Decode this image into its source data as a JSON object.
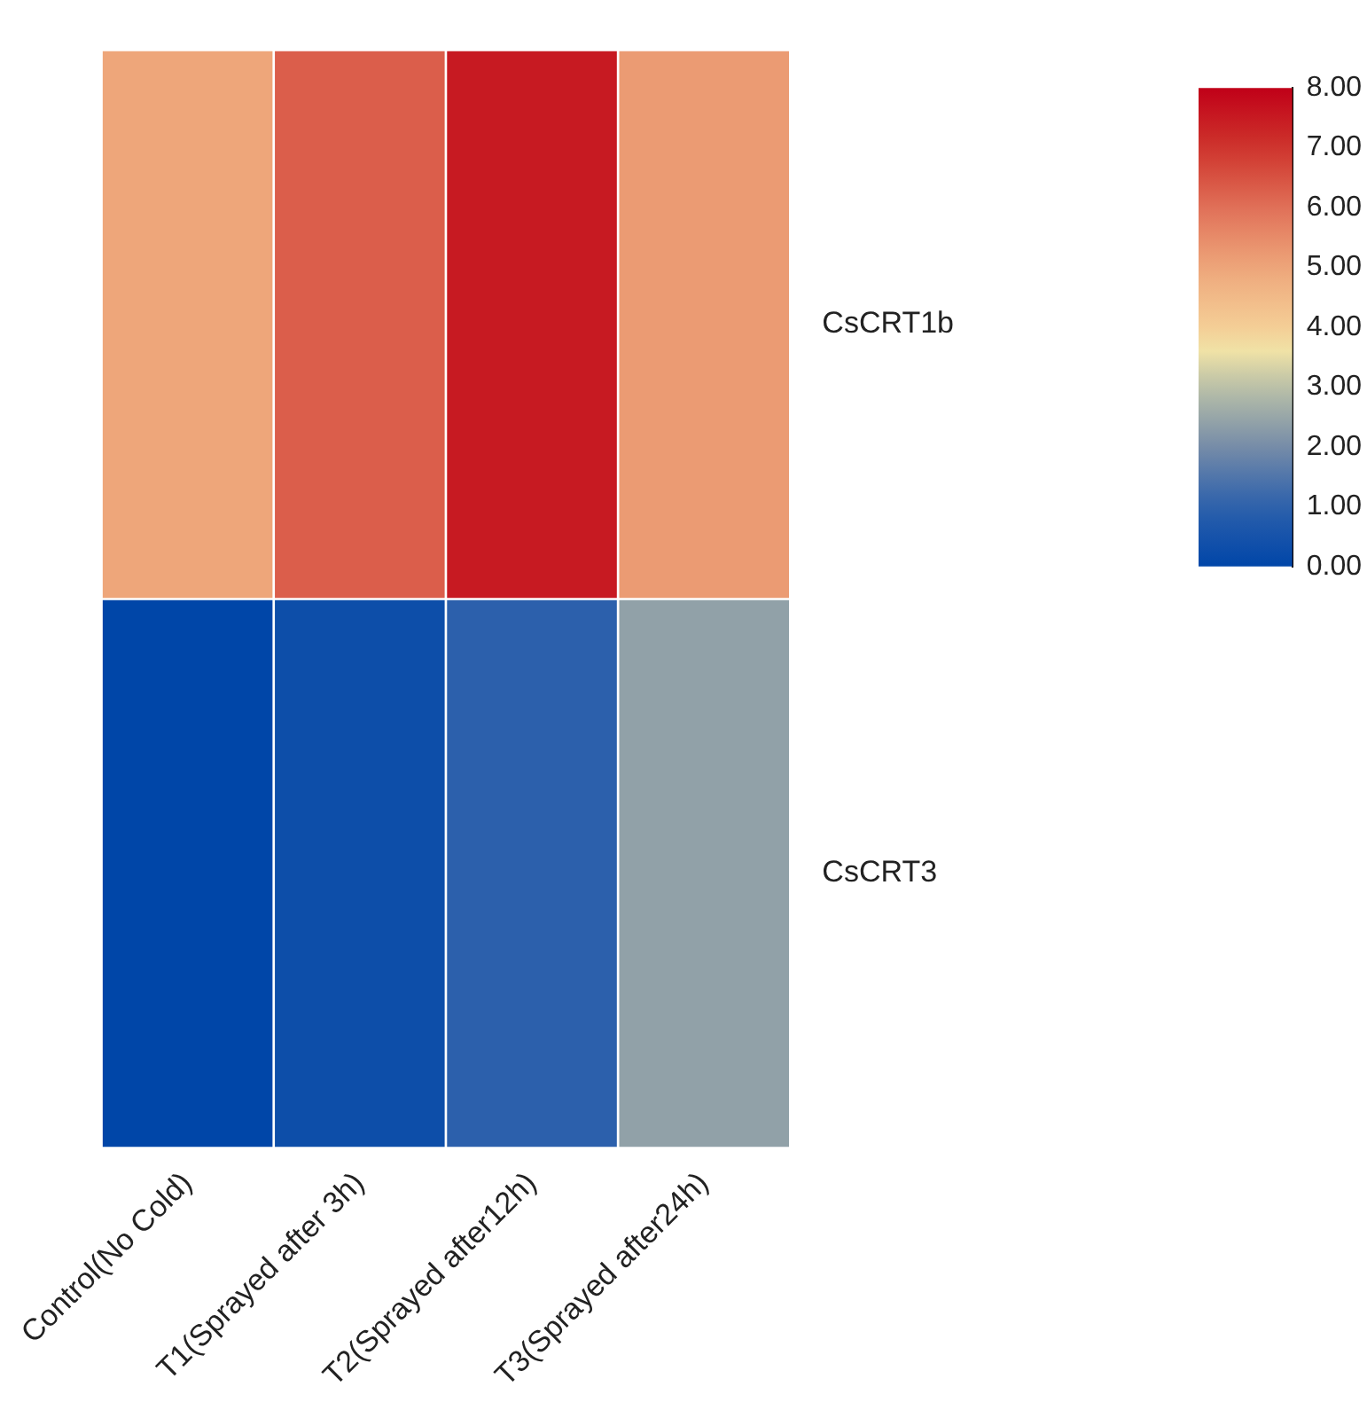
{
  "chart_data": {
    "type": "heatmap",
    "categories": [
      "Control(No Cold)",
      "T1(Sprayed after 3h)",
      "T2(Sprayed after12h)",
      "T3(Sprayed after24h)"
    ],
    "y_categories": [
      "CsCRT1b",
      "CsCRT3"
    ],
    "cells": [
      [
        5.0,
        6.3,
        7.5,
        5.2
      ],
      [
        0.0,
        0.3,
        1.0,
        2.4
      ]
    ],
    "clim": [
      0,
      8
    ],
    "cticks": [
      {
        "value": 0,
        "label": "0.00"
      },
      {
        "value": 1,
        "label": "1.00"
      },
      {
        "value": 2,
        "label": "2.00"
      },
      {
        "value": 3,
        "label": "3.00"
      },
      {
        "value": 4,
        "label": "4.00"
      },
      {
        "value": 5,
        "label": "5.00"
      },
      {
        "value": 6,
        "label": "6.00"
      },
      {
        "value": 7,
        "label": "7.00"
      },
      {
        "value": 8,
        "label": "8.00"
      }
    ]
  }
}
